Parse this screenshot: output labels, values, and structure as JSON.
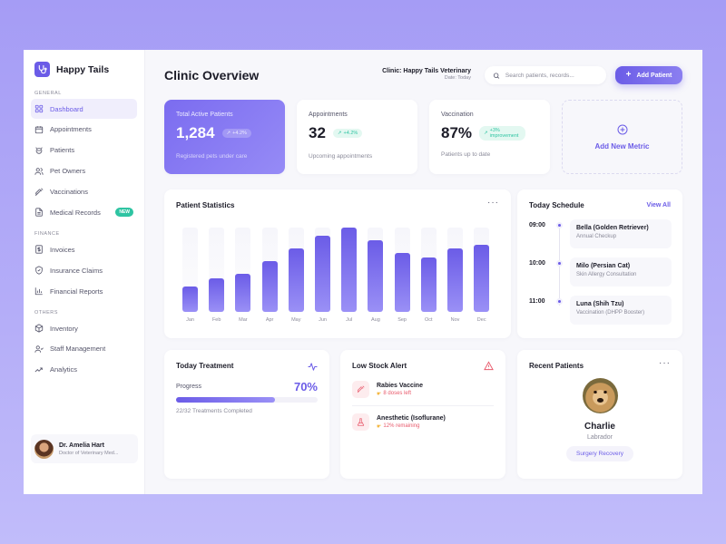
{
  "brand": {
    "name": "Happy Tails"
  },
  "sidebar": {
    "sections": [
      {
        "label": "GENERAL",
        "items": [
          {
            "label": "Dashboard",
            "icon": "grid-icon",
            "active": true
          },
          {
            "label": "Appointments",
            "icon": "calendar-icon"
          },
          {
            "label": "Patients",
            "icon": "paw-icon"
          },
          {
            "label": "Pet Owners",
            "icon": "users-icon"
          },
          {
            "label": "Vaccinations",
            "icon": "syringe-icon"
          },
          {
            "label": "Medical Records",
            "icon": "document-icon",
            "badge": "NEW"
          }
        ]
      },
      {
        "label": "FINANCE",
        "items": [
          {
            "label": "Invoices",
            "icon": "invoice-icon"
          },
          {
            "label": "Insurance Claims",
            "icon": "shield-icon"
          },
          {
            "label": "Financial Reports",
            "icon": "bar-chart-icon"
          }
        ]
      },
      {
        "label": "OTHERS",
        "items": [
          {
            "label": "Inventory",
            "icon": "box-icon"
          },
          {
            "label": "Staff Management",
            "icon": "staff-icon"
          },
          {
            "label": "Analytics",
            "icon": "trend-icon"
          }
        ]
      }
    ],
    "user": {
      "name": "Dr. Amelia Hart",
      "role": "Doctor of Veterinary Med..."
    }
  },
  "header": {
    "title": "Clinic Overview",
    "clinic": "Clinic: Happy Tails Veterinary",
    "date": "Date: Today",
    "search_placeholder": "Search patients, records...",
    "add_button": "Add Patient"
  },
  "stats": [
    {
      "label": "Total Active Patients",
      "value": "1,284",
      "trend": "+4.2%",
      "sub": "Registered pets under care"
    },
    {
      "label": "Appointments",
      "value": "32",
      "trend": "+4.2%",
      "sub": "Upcoming appointments"
    },
    {
      "label": "Vaccination",
      "value": "87%",
      "trend_line1": "+3%",
      "trend_line2": "improvement",
      "sub": "Patients up to date"
    }
  ],
  "add_metric": {
    "label": "Add New Metric"
  },
  "patient_statistics": {
    "title": "Patient Statistics",
    "menu": "···"
  },
  "chart_data": {
    "type": "bar",
    "title": "Patient Statistics",
    "categories": [
      "Jan",
      "Feb",
      "Mar",
      "Apr",
      "May",
      "Jun",
      "Jul",
      "Aug",
      "Sep",
      "Oct",
      "Nov",
      "Dec"
    ],
    "values": [
      30,
      40,
      45,
      60,
      75,
      90,
      100,
      85,
      70,
      65,
      75,
      80
    ],
    "xlabel": "",
    "ylabel": "",
    "ylim": [
      0,
      100
    ],
    "grid": false,
    "legend": "none"
  },
  "schedule": {
    "title": "Today Schedule",
    "view_all": "View All",
    "items": [
      {
        "time": "09:00",
        "name": "Bella (Golden Retriever)",
        "desc": "Annual Checkup"
      },
      {
        "time": "10:00",
        "name": "Milo (Persian Cat)",
        "desc": "Skin Allergy Consultation"
      },
      {
        "time": "11:00",
        "name": "Luna (Shih Tzu)",
        "desc": "Vaccination (DHPP Booster)"
      }
    ]
  },
  "treatment": {
    "title": "Today Treatment",
    "progress_label": "Progress",
    "progress_value": "70%",
    "progress_pct": 70,
    "summary": "22/32 Treatments Completed"
  },
  "low_stock": {
    "title": "Low Stock Alert",
    "items": [
      {
        "name": "Rabies Vaccine",
        "status": "8 doses left",
        "icon": "syringe-icon"
      },
      {
        "name": "Anesthetic (Isoflurane)",
        "status": "12% remaining",
        "icon": "flask-icon"
      }
    ]
  },
  "recent_patients": {
    "title": "Recent Patients",
    "menu": "···",
    "patient": {
      "name": "Charlie",
      "breed": "Labrador",
      "tag": "Surgery Recovery"
    }
  },
  "colors": {
    "accent": "#6b5ce7",
    "success": "#2ec4a2",
    "danger": "#e8596b",
    "background": "#a59cf5"
  }
}
